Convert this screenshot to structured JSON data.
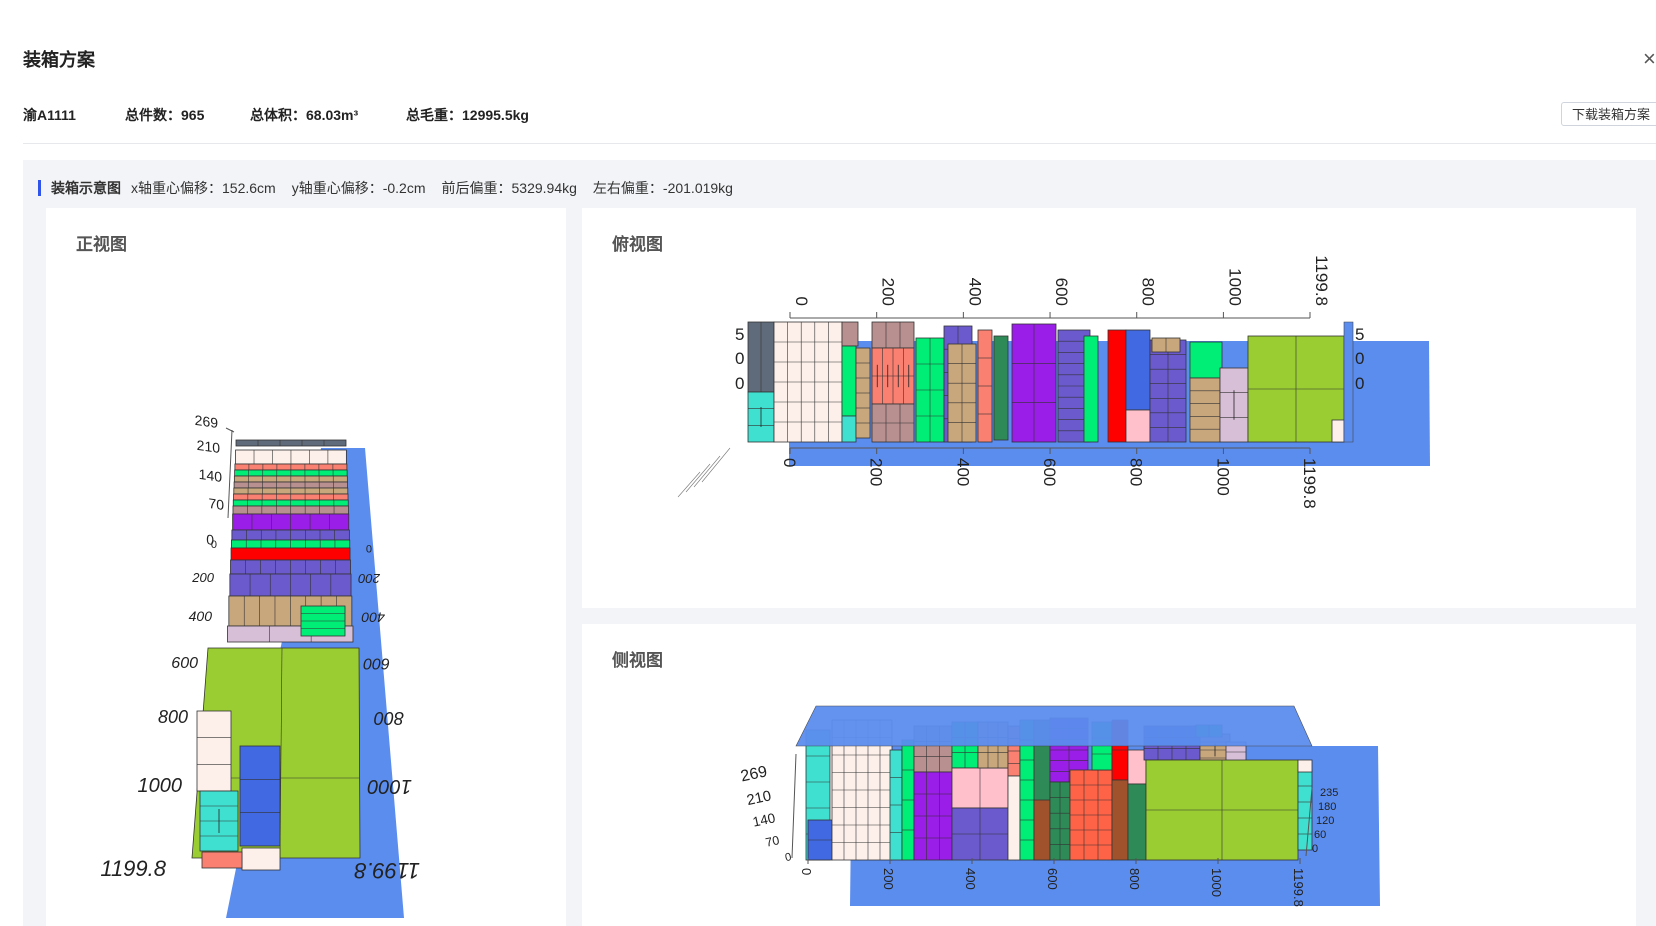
{
  "header": {
    "title": "装箱方案"
  },
  "summary": {
    "plate": "渝A1111",
    "total_pieces": "总件数：965",
    "total_volume": "总体积：68.03m³",
    "total_weight": "总毛重：12995.5kg",
    "download_label": "下载装箱方案"
  },
  "section": {
    "label": "装箱示意图",
    "x_offset": "x轴重心偏移：152.6cm",
    "y_offset": "y轴重心偏移：-0.2cm",
    "front_rear": "前后偏重：5329.94kg",
    "left_right": "左右偏重：-201.019kg"
  },
  "views": {
    "front": {
      "title": "正视图"
    },
    "top": {
      "title": "俯视图"
    },
    "side": {
      "title": "侧视图"
    }
  },
  "axis": {
    "length_ticks": [
      "0",
      "200",
      "400",
      "600",
      "800",
      "1000",
      "1199.8"
    ],
    "height_ticks": [
      "0",
      "70",
      "140",
      "210",
      "269"
    ],
    "width_ticks": [
      "0",
      "60",
      "120",
      "180",
      "235"
    ]
  },
  "colors": {
    "container": "#5b8def",
    "lime": "#9acd32",
    "purple": "#9b1de8",
    "slate": "#6a5acd",
    "green": "#00ee76",
    "red": "#ff0000",
    "salmon": "#fa8072",
    "tan": "#c9a77c",
    "rosy": "#b89090",
    "thistle": "#d8bfd8",
    "royal": "#4169e1",
    "turquoise": "#40e0d0",
    "seashell": "#fdf0ea",
    "darkgreen": "#2e8b57",
    "gray": "#5f6b7a",
    "pink": "#ffc0cb",
    "orange": "#ff6347",
    "brown": "#a0522d"
  }
}
